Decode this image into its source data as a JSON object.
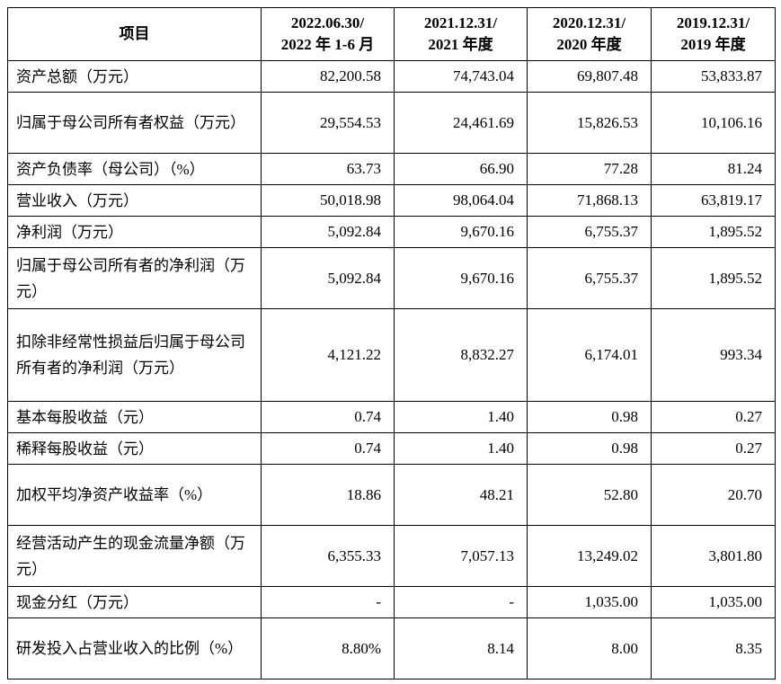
{
  "table": {
    "header": {
      "item_label": "项目",
      "periods": [
        {
          "line1": "2022.06.30/",
          "line2": "2022 年 1-6 月"
        },
        {
          "line1": "2021.12.31/",
          "line2": "2021 年度"
        },
        {
          "line1": "2020.12.31/",
          "line2": "2020 年度"
        },
        {
          "line1": "2019.12.31/",
          "line2": "2019 年度"
        }
      ]
    },
    "rows": [
      {
        "label": "资产总额（万元）",
        "values": [
          "82,200.58",
          "74,743.04",
          "69,807.48",
          "53,833.87"
        ]
      },
      {
        "label": "归属于母公司所有者权益（万元）",
        "values": [
          "29,554.53",
          "24,461.69",
          "15,826.53",
          "10,106.16"
        ]
      },
      {
        "label": "资产负债率（母公司）（%）",
        "values": [
          "63.73",
          "66.90",
          "77.28",
          "81.24"
        ]
      },
      {
        "label": "营业收入（万元）",
        "values": [
          "50,018.98",
          "98,064.04",
          "71,868.13",
          "63,819.17"
        ]
      },
      {
        "label": "净利润（万元）",
        "values": [
          "5,092.84",
          "9,670.16",
          "6,755.37",
          "1,895.52"
        ]
      },
      {
        "label": "归属于母公司所有者的净利润（万元）",
        "values": [
          "5,092.84",
          "9,670.16",
          "6,755.37",
          "1,895.52"
        ]
      },
      {
        "label": "扣除非经常性损益后归属于母公司所有者的净利润（万元）",
        "values": [
          "4,121.22",
          "8,832.27",
          "6,174.01",
          "993.34"
        ]
      },
      {
        "label": "基本每股收益（元）",
        "values": [
          "0.74",
          "1.40",
          "0.98",
          "0.27"
        ]
      },
      {
        "label": "稀释每股收益（元）",
        "values": [
          "0.74",
          "1.40",
          "0.98",
          "0.27"
        ]
      },
      {
        "label": "加权平均净资产收益率（%）",
        "values": [
          "18.86",
          "48.21",
          "52.80",
          "20.70"
        ]
      },
      {
        "label": "经营活动产生的现金流量净额（万元）",
        "values": [
          "6,355.33",
          "7,057.13",
          "13,249.02",
          "3,801.80"
        ]
      },
      {
        "label": "现金分红（万元）",
        "values": [
          "-",
          "-",
          "1,035.00",
          "1,035.00"
        ]
      },
      {
        "label": "研发投入占营业收入的比例（%）",
        "values": [
          "8.80%",
          "8.14",
          "8.00",
          "8.35"
        ]
      }
    ]
  }
}
